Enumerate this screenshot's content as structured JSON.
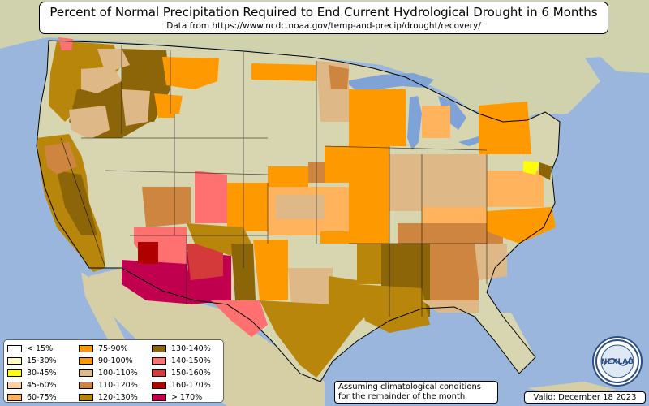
{
  "title": "Percent of Normal Precipitation Required to End Current Hydrological Drought in 6 Months",
  "subtitle": "Data from https://www.ncdc.noaa.gov/temp-and-precip/drought/recovery/",
  "note": "Assuming climatological conditions\nfor the remainder of the month",
  "note_line1": "Assuming climatological conditions",
  "note_line2": "for the remainder of the month",
  "valid": "Valid: December 18 2023",
  "logo_text": "NEXLAB",
  "colors": {
    "ocean": "#9ab6dc",
    "land": "#d8d6b0",
    "lakes": "#7fa3d6",
    "lt15": "#ffffff",
    "c15_30": "#ffffc0",
    "c30_45": "#ffff00",
    "c45_60": "#ffd29a",
    "c60_75": "#ffb35c",
    "c75_90": "#ff9900",
    "c90_100": "#ff9900",
    "c100_110": "#deb887",
    "c110_120": "#cd853f",
    "c120_130": "#b8860b",
    "c130_140": "#8b6508",
    "c140_150": "#ff7070",
    "c150_160": "#d43a3a",
    "c160_170": "#b00000",
    "gt170": "#c0004e"
  },
  "legend": [
    {
      "label": "< 15%",
      "color": "#ffffff"
    },
    {
      "label": "15-30%",
      "color": "#ffffc0"
    },
    {
      "label": "30-45%",
      "color": "#ffff00"
    },
    {
      "label": "45-60%",
      "color": "#ffd29a"
    },
    {
      "label": "60-75%",
      "color": "#ffb35c"
    },
    {
      "label": "75-90%",
      "color": "#ff9900"
    },
    {
      "label": "90-100%",
      "color": "#ff9900"
    },
    {
      "label": "100-110%",
      "color": "#deb887"
    },
    {
      "label": "110-120%",
      "color": "#cd853f"
    },
    {
      "label": "120-130%",
      "color": "#b8860b"
    },
    {
      "label": "130-140%",
      "color": "#8b6508"
    },
    {
      "label": "140-150%",
      "color": "#ff7070"
    },
    {
      "label": "150-160%",
      "color": "#d43a3a"
    },
    {
      "label": "160-170%",
      "color": "#b00000"
    },
    {
      "label": "> 170%",
      "color": "#c0004e"
    }
  ]
}
